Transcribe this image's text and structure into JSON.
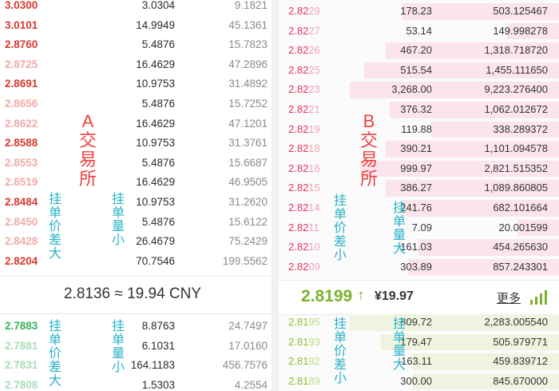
{
  "panel_a": {
    "label": "A交易所",
    "asks": [
      {
        "price": "3.0300",
        "amount": "3.0304",
        "total": "9.1821",
        "faded": false
      },
      {
        "price": "3.0101",
        "amount": "14.9949",
        "total": "45.1361",
        "faded": false
      },
      {
        "price": "2.8760",
        "amount": "5.4876",
        "total": "15.7823",
        "faded": false
      },
      {
        "price": "2.8725",
        "amount": "16.4629",
        "total": "47.2896",
        "faded": true
      },
      {
        "price": "2.8691",
        "amount": "10.9753",
        "total": "31.4892",
        "faded": false
      },
      {
        "price": "2.8656",
        "amount": "5.4876",
        "total": "15.7252",
        "faded": true
      },
      {
        "price": "2.8622",
        "amount": "16.4629",
        "total": "47.1201",
        "faded": true
      },
      {
        "price": "2.8588",
        "amount": "10.9753",
        "total": "31.3761",
        "faded": false
      },
      {
        "price": "2.8553",
        "amount": "5.4876",
        "total": "15.6687",
        "faded": true
      },
      {
        "price": "2.8519",
        "amount": "16.4629",
        "total": "46.9505",
        "faded": true
      },
      {
        "price": "2.8484",
        "amount": "10.9753",
        "total": "31.2620",
        "faded": false
      },
      {
        "price": "2.8450",
        "amount": "5.4876",
        "total": "15.6122",
        "faded": true
      },
      {
        "price": "2.8428",
        "amount": "26.4679",
        "total": "75.2429",
        "faded": true
      },
      {
        "price": "2.8204",
        "amount": "70.7546",
        "total": "199.5562",
        "faded": false
      }
    ],
    "mid": "2.8136 ≈ 19.94 CNY",
    "bids": [
      {
        "price": "2.7883",
        "amount": "8.8763",
        "total": "24.7497",
        "faded": false
      },
      {
        "price": "2.7881",
        "amount": "6.1031",
        "total": "17.0160",
        "faded": true
      },
      {
        "price": "2.7831",
        "amount": "164.1183",
        "total": "456.7576",
        "faded": true
      },
      {
        "price": "2.7808",
        "amount": "1.5303",
        "total": "4.2554",
        "faded": true
      }
    ],
    "annot_price_gap": "挂单价差大",
    "annot_amount": "挂单量小",
    "annot_price_gap_bid": "挂单价差大",
    "annot_amount_bid": "挂单量小"
  },
  "panel_b": {
    "label": "B交易所",
    "asks": [
      {
        "price_main": "2.82",
        "price_dim": "29",
        "amount": "178.23",
        "total": "503.125467",
        "depth": 0.75
      },
      {
        "price_main": "2.82",
        "price_dim": "27",
        "amount": "53.14",
        "total": "149.998278",
        "depth": 0.25
      },
      {
        "price_main": "2.82",
        "price_dim": "26",
        "amount": "467.20",
        "total": "1,318.718720",
        "depth": 0.83
      },
      {
        "price_main": "2.82",
        "price_dim": "25",
        "amount": "515.54",
        "total": "1,455.111650",
        "depth": 0.93
      },
      {
        "price_main": "2.82",
        "price_dim": "23",
        "amount": "3,268.00",
        "total": "9,223.276400",
        "depth": 1.0
      },
      {
        "price_main": "2.82",
        "price_dim": "21",
        "amount": "376.32",
        "total": "1,062.012672",
        "depth": 0.81
      },
      {
        "price_main": "2.82",
        "price_dim": "19",
        "amount": "119.88",
        "total": "338.289372",
        "depth": 0.61
      },
      {
        "price_main": "2.82",
        "price_dim": "18",
        "amount": "390.21",
        "total": "1,101.094578",
        "depth": 0.83
      },
      {
        "price_main": "2.82",
        "price_dim": "16",
        "amount": "999.97",
        "total": "2,821.515352",
        "depth": 0.95
      },
      {
        "price_main": "2.82",
        "price_dim": "15",
        "amount": "386.27",
        "total": "1,089.860805",
        "depth": 0.83
      },
      {
        "price_main": "2.82",
        "price_dim": "14",
        "amount": "241.76",
        "total": "682.101664",
        "depth": 0.75
      },
      {
        "price_main": "2.82",
        "price_dim": "11",
        "amount": "7.09",
        "total": "20.001599",
        "depth": 0.2
      },
      {
        "price_main": "2.82",
        "price_dim": "10",
        "amount": "161.03",
        "total": "454.265630",
        "depth": 0.67
      },
      {
        "price_main": "2.82",
        "price_dim": "09",
        "amount": "303.89",
        "total": "857.243301",
        "depth": 0.72
      }
    ],
    "mid_price": "2.8199",
    "mid_arrow": "↑",
    "mid_cny": "¥19.97",
    "more_label": "更多",
    "bids": [
      {
        "price_main": "2.81",
        "price_dim": "95",
        "amount": "809.72",
        "total": "2,283.005540",
        "depth": 1.0
      },
      {
        "price_main": "2.81",
        "price_dim": "93",
        "amount": "179.47",
        "total": "505.979771",
        "depth": 0.85
      },
      {
        "price_main": "2.81",
        "price_dim": "92",
        "amount": "163.11",
        "total": "459.839712",
        "depth": 0.7
      },
      {
        "price_main": "2.81",
        "price_dim": "89",
        "amount": "300.00",
        "total": "845.670000",
        "depth": 0.7
      }
    ],
    "annot_price_gap": "挂单价差小",
    "annot_amount": "挂单量大",
    "annot_price_gap_bid": "挂单价差小",
    "annot_amount_bid": "挂单量大"
  },
  "colors": {
    "ask_red": "#d8382e",
    "bid_green": "#38b45a",
    "b_ask_pink": "#e8335f",
    "b_bid_green": "#8bbf28",
    "annotation_cyan": "#2ab3c8"
  }
}
